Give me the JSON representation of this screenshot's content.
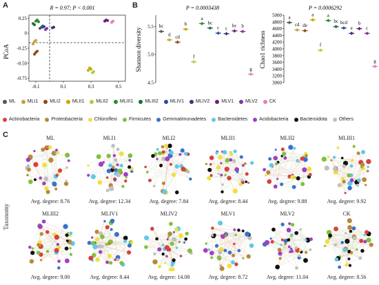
{
  "panels": {
    "a": {
      "letter": "A",
      "annotation": "R = 0.97; P < 0.001",
      "ylabel": "PCoA",
      "yticks": [
        "0.25",
        "0",
        "-0.25",
        "-0.50",
        "-0.75"
      ],
      "xticks": [
        "-0.1",
        "0.1",
        "0.3",
        "0.5"
      ]
    },
    "b": {
      "letter": "B",
      "left": {
        "p_value": "P = 0.0003438",
        "ylabel": "Shannon diversity",
        "yticks": [
          "5.5",
          "5.0",
          "4.5"
        ],
        "letters": [
          "bc",
          "d",
          "cd",
          "b",
          "f",
          "a",
          "bc",
          "c",
          "c",
          "bc",
          "b",
          "g"
        ]
      },
      "right": {
        "p_value": "P = 0.0006292",
        "ylabel": "Chao1 richness",
        "yticks": [
          "5000",
          "4800",
          "4600",
          "4400",
          "4200",
          "4000",
          "3800",
          "3600",
          "3400",
          "3200",
          "3000"
        ],
        "letters": [
          "a",
          "cd",
          "de",
          "a",
          "f",
          "a",
          "bc",
          "bcd",
          "e",
          "b",
          "c",
          "g"
        ]
      }
    },
    "c": {
      "letter": "C",
      "ylabel": "Taxonomy"
    }
  },
  "groups_legend": [
    {
      "label": "ML",
      "color": "#555555"
    },
    {
      "label": "MLI1",
      "color": "#c8a040"
    },
    {
      "label": "MLI2",
      "color": "#8b4b1a"
    },
    {
      "label": "MLII1",
      "color": "#c8a800"
    },
    {
      "label": "MLII2",
      "color": "#a8d040"
    },
    {
      "label": "MLIII1",
      "color": "#2e8b2e"
    },
    {
      "label": "MLIII2",
      "color": "#1b6e3a"
    },
    {
      "label": "MLIV1",
      "color": "#2a4aa0"
    },
    {
      "label": "MLIV2",
      "color": "#4b2a7a"
    },
    {
      "label": "MLV1",
      "color": "#6a1f7a"
    },
    {
      "label": "MLV2",
      "color": "#7a3a9a"
    },
    {
      "label": "CK",
      "color": "#e080c0"
    }
  ],
  "taxa_legend": [
    {
      "label": "Actinobacteria",
      "color": "#d94040"
    },
    {
      "label": "Proteobacteria",
      "color": "#b8893a"
    },
    {
      "label": "Chloroflexi",
      "color": "#f0e040"
    },
    {
      "label": "Firmicutes",
      "color": "#80c040"
    },
    {
      "label": "Gemmatimonadetes",
      "color": "#3a70d0"
    },
    {
      "label": "Bacteroidetes",
      "color": "#60c8e8"
    },
    {
      "label": "Acidobacteria",
      "color": "#a040c0"
    },
    {
      "label": "Bacteroidota",
      "color": "#111111"
    },
    {
      "label": "Others",
      "color": "#c0c0c0"
    }
  ],
  "networks": [
    {
      "name": "ML",
      "degree": "Avg. degree: 8.76"
    },
    {
      "name": "MLI1",
      "degree": "Avg. degree: 12.34"
    },
    {
      "name": "MLI2",
      "degree": "Avg. degree: 7.84"
    },
    {
      "name": "MLII1",
      "degree": "Avg. degree: 8.44"
    },
    {
      "name": "MLII2",
      "degree": "Avg. degree: 9.88"
    },
    {
      "name": "MLIII1",
      "degree": "Avg. degree: 9.92"
    },
    {
      "name": "MLIII2",
      "degree": "Avg. degree: 9.00"
    },
    {
      "name": "MLIV1",
      "degree": "Avg. degree: 8.44"
    },
    {
      "name": "MLIV2",
      "degree": "Avg. degree: 14.08"
    },
    {
      "name": "MLV1",
      "degree": "Avg. degree: 8.72"
    },
    {
      "name": "MLV2",
      "degree": "Avg. degree: 11.04"
    },
    {
      "name": "CK",
      "degree": "Avg. degree: 8.56"
    }
  ],
  "chart_data": [
    {
      "type": "scatter",
      "ylabel": "PCoA",
      "annotation": "R = 0.97; P < 0.001",
      "series": [
        {
          "color": "#555555",
          "points": [
            [
              -0.07,
              0.08
            ],
            [
              -0.06,
              0.1
            ],
            [
              -0.05,
              0.12
            ]
          ]
        },
        {
          "color": "#c8a040",
          "points": [
            [
              -0.12,
              -0.18
            ],
            [
              -0.11,
              -0.14
            ],
            [
              -0.1,
              -0.12
            ]
          ]
        },
        {
          "color": "#8b4b1a",
          "points": [
            [
              -0.11,
              -0.35
            ],
            [
              -0.1,
              -0.32
            ],
            [
              -0.09,
              -0.3
            ]
          ]
        },
        {
          "color": "#c8a800",
          "points": [
            [
              0.28,
              -0.62
            ],
            [
              0.29,
              -0.58
            ],
            [
              0.3,
              -0.6
            ]
          ]
        },
        {
          "color": "#a8d040",
          "points": [
            [
              0.31,
              -0.66
            ],
            [
              0.32,
              -0.64
            ]
          ]
        },
        {
          "color": "#2e8b2e",
          "points": [
            [
              -0.1,
              0.2
            ],
            [
              -0.09,
              0.22
            ],
            [
              -0.08,
              0.19
            ]
          ]
        },
        {
          "color": "#1b6e3a",
          "points": [
            [
              -0.12,
              0.16
            ],
            [
              -0.11,
              0.14
            ]
          ]
        },
        {
          "color": "#2a4aa0",
          "points": [
            [
              -0.05,
              0.1
            ],
            [
              -0.04,
              0.11
            ]
          ]
        },
        {
          "color": "#4b2a7a",
          "points": [
            [
              0.02,
              0.09
            ],
            [
              0.03,
              0.1
            ]
          ]
        },
        {
          "color": "#6a1f7a",
          "points": [
            [
              0.4,
              0.2
            ],
            [
              0.41,
              0.22
            ],
            [
              0.42,
              0.21
            ]
          ]
        },
        {
          "color": "#7a3a9a",
          "points": [
            [
              -0.03,
              0.06
            ],
            [
              -0.02,
              0.08
            ]
          ]
        },
        {
          "color": "#e080c0",
          "points": [
            [
              0.45,
              0.18
            ],
            [
              0.46,
              0.2
            ]
          ]
        }
      ]
    },
    {
      "type": "scatter",
      "ylabel": "Shannon diversity",
      "p_value": "P = 0.0003438",
      "categories": [
        "ML",
        "MLI1",
        "MLI2",
        "MLII1",
        "MLII2",
        "MLIII1",
        "MLIII2",
        "MLIV1",
        "MLIV2",
        "MLV1",
        "MLV2",
        "CK"
      ],
      "values": [
        5.41,
        5.26,
        5.22,
        5.45,
        4.87,
        5.55,
        5.47,
        5.38,
        5.37,
        5.42,
        5.41,
        4.65
      ],
      "letters": [
        "bc",
        "d",
        "cd",
        "b",
        "f",
        "a",
        "bc",
        "c",
        "c",
        "bc",
        "b",
        "g"
      ],
      "ylim": [
        4.5,
        5.7
      ]
    },
    {
      "type": "scatter",
      "ylabel": "Chao1 richness",
      "p_value": "P = 0.0006292",
      "categories": [
        "ML",
        "MLI1",
        "MLI2",
        "MLII1",
        "MLII2",
        "MLIII1",
        "MLIII2",
        "MLIV1",
        "MLIV2",
        "MLV1",
        "MLV2",
        "CK"
      ],
      "values": [
        4780,
        4560,
        4540,
        4860,
        3960,
        4840,
        4660,
        4620,
        4460,
        4600,
        4460,
        3480
      ],
      "letters": [
        "a",
        "cd",
        "de",
        "a",
        "f",
        "a",
        "bc",
        "bcd",
        "e",
        "b",
        "c",
        "g"
      ],
      "ylim": [
        3000,
        5000
      ]
    }
  ]
}
